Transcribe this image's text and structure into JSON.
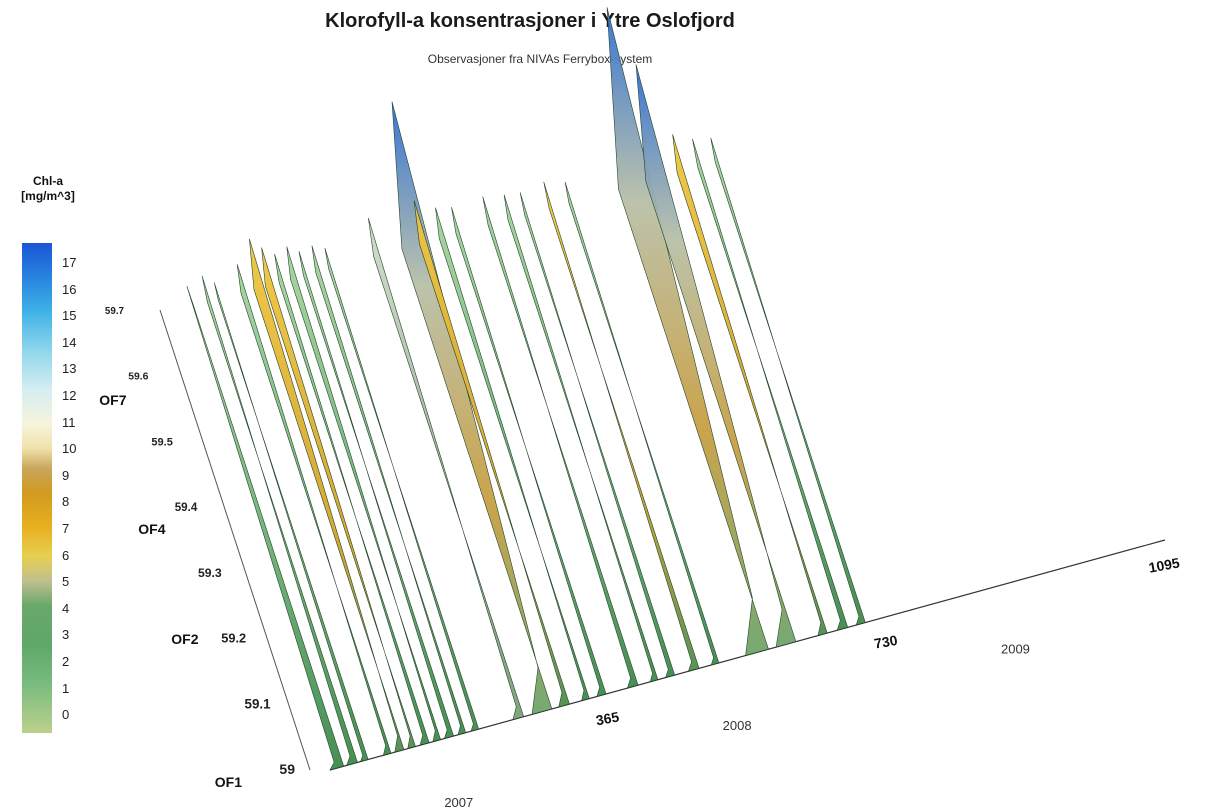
{
  "title": "Klorofyll-a konsentrasjoner i Ytre Oslofjord",
  "subtitle": "Observasjoner fra NIVAs Ferrybox-system",
  "colorbar": {
    "title_line1": "Chl-a",
    "title_line2": "[mg/m^3]",
    "ticks": [
      "17",
      "16",
      "15",
      "14",
      "13",
      "12",
      "11",
      "10",
      "9",
      "8",
      "7",
      "6",
      "5",
      "4",
      "3",
      "2",
      "1",
      "0"
    ]
  },
  "chart_data": {
    "type": "surface",
    "title": "Klorofyll-a konsentrasjoner i Ytre Oslofjord",
    "subtitle": "Observasjoner fra NIVAs Ferrybox-system",
    "colorbar_label": "Chl-a [mg/m^3]",
    "colorbar_range": [
      0,
      17
    ],
    "latitude_axis": {
      "ticks": [
        "59",
        "59.1",
        "59.2",
        "59.3",
        "59.4",
        "59.5",
        "59.6",
        "59.7"
      ],
      "stations": [
        "OF1",
        "OF2",
        "OF4",
        "OF7"
      ]
    },
    "day_axis": {
      "ticks": [
        "365",
        "730",
        "1095"
      ],
      "years": [
        "2007",
        "2008",
        "2009"
      ]
    },
    "peaks": [
      {
        "year": "2007",
        "max_chl": 6
      },
      {
        "year": "2008",
        "max_chl": 14
      },
      {
        "year": "2009",
        "max_chl": 17
      }
    ]
  }
}
